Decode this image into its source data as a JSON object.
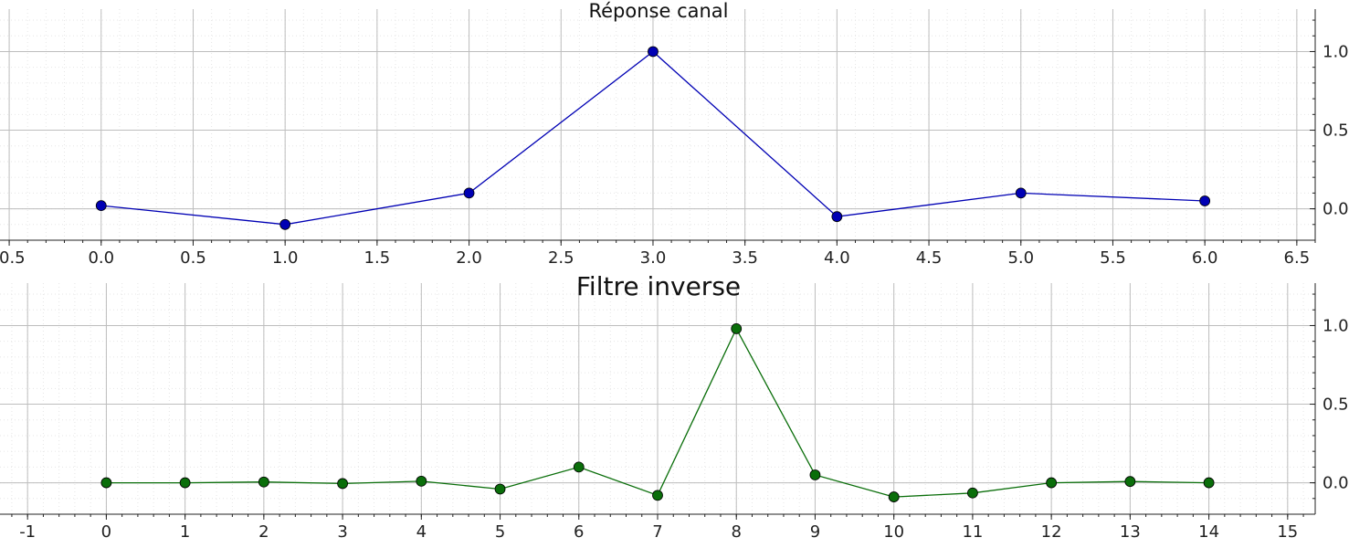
{
  "chart_data": [
    {
      "type": "line",
      "title": "Réponse canal",
      "xlabel": "",
      "ylabel": "",
      "xlim": [
        -0.55,
        6.6
      ],
      "ylim": [
        -0.2,
        1.27
      ],
      "x_ticks": [
        "-0.5",
        "0.0",
        "0.5",
        "1.0",
        "1.5",
        "2.0",
        "2.5",
        "3.0",
        "3.5",
        "4.0",
        "4.5",
        "5.0",
        "5.5",
        "6.0",
        "6.5"
      ],
      "x_tick_values": [
        -0.5,
        0.0,
        0.5,
        1.0,
        1.5,
        2.0,
        2.5,
        3.0,
        3.5,
        4.0,
        4.5,
        5.0,
        5.5,
        6.0,
        6.5
      ],
      "y_ticks": [
        "0.0",
        "0.5",
        "1.0"
      ],
      "y_tick_values": [
        0.0,
        0.5,
        1.0
      ],
      "y_axis_side": "right",
      "grid": true,
      "minor_grid": true,
      "color": "#0000b4",
      "series": [
        {
          "x": [
            0,
            1,
            2,
            3,
            4,
            5,
            6
          ],
          "y": [
            0.02,
            -0.1,
            0.1,
            1.0,
            -0.05,
            0.1,
            0.05
          ]
        }
      ]
    },
    {
      "type": "line",
      "title": "Filtre inverse",
      "xlabel": "",
      "ylabel": "",
      "xlim": [
        -1.35,
        15.35
      ],
      "ylim": [
        -0.2,
        1.27
      ],
      "x_ticks": [
        "-1",
        "0",
        "1",
        "2",
        "3",
        "4",
        "5",
        "6",
        "7",
        "8",
        "9",
        "10",
        "11",
        "12",
        "13",
        "14",
        "15"
      ],
      "x_tick_values": [
        -1,
        0,
        1,
        2,
        3,
        4,
        5,
        6,
        7,
        8,
        9,
        10,
        11,
        12,
        13,
        14,
        15
      ],
      "y_ticks": [
        "0.0",
        "0.5",
        "1.0"
      ],
      "y_tick_values": [
        0.0,
        0.5,
        1.0
      ],
      "y_axis_side": "right",
      "grid": true,
      "minor_grid": true,
      "color": "#0a6e0a",
      "series": [
        {
          "x": [
            0,
            1,
            2,
            3,
            4,
            5,
            6,
            7,
            8,
            9,
            10,
            11,
            12,
            13,
            14
          ],
          "y": [
            0.0,
            0.0,
            0.005,
            -0.005,
            0.01,
            -0.04,
            0.1,
            -0.08,
            0.98,
            0.05,
            -0.09,
            -0.065,
            0.0,
            0.008,
            0.0
          ]
        }
      ]
    }
  ]
}
